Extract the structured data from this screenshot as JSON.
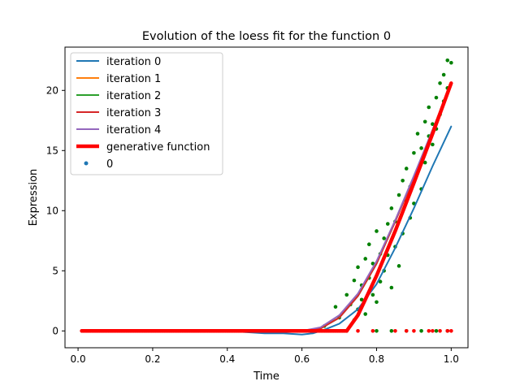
{
  "chart_data": {
    "type": "scatter",
    "title": "Evolution of the loess fit for the function 0",
    "xlabel": "Time",
    "ylabel": "Expression",
    "xlim": [
      -0.035,
      1.045
    ],
    "ylim": [
      -1.4,
      23.6
    ],
    "xticks": [
      0.0,
      0.2,
      0.4,
      0.6,
      0.8,
      1.0
    ],
    "xtick_labels": [
      "0.0",
      "0.2",
      "0.4",
      "0.6",
      "0.8",
      "1.0"
    ],
    "yticks": [
      0,
      5,
      10,
      15,
      20
    ],
    "ytick_labels": [
      "0",
      "5",
      "10",
      "15",
      "20"
    ],
    "grid": false,
    "legend_position": "upper-left",
    "series": [
      {
        "name": "iteration 0",
        "kind": "line",
        "color": "#1f77b4",
        "x": [
          0.01,
          0.1,
          0.2,
          0.3,
          0.4,
          0.45,
          0.5,
          0.55,
          0.6,
          0.63,
          0.66,
          0.7,
          0.75,
          0.8,
          0.85,
          0.9,
          0.95,
          1.0
        ],
        "y": [
          0.0,
          0.0,
          0.0,
          0.0,
          0.0,
          -0.1,
          -0.2,
          -0.2,
          -0.3,
          -0.2,
          0.1,
          0.6,
          1.8,
          3.9,
          6.9,
          10.2,
          13.7,
          17.0
        ]
      },
      {
        "name": "iteration 1",
        "kind": "line",
        "color": "#ff7f0e",
        "x": [
          0.01,
          0.2,
          0.4,
          0.6,
          0.65,
          0.7,
          0.75,
          0.8,
          0.85,
          0.9,
          0.95,
          1.0
        ],
        "y": [
          0.0,
          0.0,
          0.0,
          0.0,
          0.2,
          1.1,
          2.9,
          5.6,
          9.1,
          12.8,
          16.7,
          20.6
        ]
      },
      {
        "name": "iteration 2",
        "kind": "line",
        "color": "#2ca02c",
        "x": [
          0.01,
          0.2,
          0.4,
          0.6,
          0.65,
          0.7,
          0.75,
          0.8,
          0.85,
          0.9,
          0.95,
          1.0
        ],
        "y": [
          0.0,
          0.0,
          0.0,
          0.0,
          0.2,
          1.1,
          2.9,
          5.6,
          9.1,
          12.8,
          16.7,
          20.6
        ]
      },
      {
        "name": "iteration 3",
        "kind": "line",
        "color": "#d62728",
        "x": [
          0.01,
          0.2,
          0.4,
          0.6,
          0.65,
          0.7,
          0.75,
          0.8,
          0.85,
          0.9,
          0.95,
          1.0
        ],
        "y": [
          0.0,
          0.0,
          0.0,
          0.0,
          0.2,
          1.1,
          2.9,
          5.6,
          9.1,
          12.8,
          16.7,
          20.6
        ]
      },
      {
        "name": "iteration 4",
        "kind": "line",
        "color": "#9467bd",
        "x": [
          0.01,
          0.2,
          0.4,
          0.6,
          0.65,
          0.7,
          0.75,
          0.8,
          0.85,
          0.9,
          0.95,
          1.0
        ],
        "y": [
          0.0,
          0.0,
          0.0,
          0.0,
          0.3,
          1.3,
          3.1,
          5.8,
          9.2,
          12.9,
          16.7,
          20.6
        ]
      },
      {
        "name": "generative function",
        "kind": "thick-line",
        "color": "#ff0000",
        "x": [
          0.01,
          0.2,
          0.4,
          0.6,
          0.7,
          0.72,
          0.75,
          0.8,
          0.85,
          0.9,
          0.95,
          1.0
        ],
        "y": [
          0.0,
          0.0,
          0.0,
          0.0,
          0.0,
          0.0,
          1.3,
          4.6,
          8.3,
          12.3,
          16.4,
          20.6
        ]
      },
      {
        "name": "0",
        "kind": "points",
        "color": "#1f77b4"
      }
    ],
    "scatter_points": {
      "color": "#008000",
      "x": [
        0.66,
        0.69,
        0.7,
        0.72,
        0.73,
        0.74,
        0.74,
        0.75,
        0.75,
        0.76,
        0.76,
        0.77,
        0.77,
        0.78,
        0.78,
        0.79,
        0.79,
        0.8,
        0.8,
        0.81,
        0.81,
        0.82,
        0.82,
        0.83,
        0.83,
        0.84,
        0.84,
        0.85,
        0.85,
        0.86,
        0.86,
        0.87,
        0.87,
        0.88,
        0.88,
        0.89,
        0.89,
        0.9,
        0.9,
        0.91,
        0.91,
        0.92,
        0.92,
        0.93,
        0.93,
        0.94,
        0.94,
        0.95,
        0.95,
        0.96,
        0.96,
        0.97,
        0.97,
        0.98,
        0.98,
        0.99,
        0.99,
        1.0,
        0.72,
        0.8,
        0.84,
        0.88,
        0.92,
        0.96,
        0.99
      ],
      "y": [
        0.4,
        2.0,
        1.1,
        3.0,
        2.2,
        4.2,
        0.9,
        5.3,
        1.8,
        3.8,
        2.6,
        6.0,
        1.4,
        4.4,
        7.2,
        3.0,
        5.6,
        8.3,
        2.4,
        6.4,
        4.1,
        7.7,
        5.0,
        8.9,
        6.3,
        10.2,
        3.6,
        9.1,
        7.0,
        11.3,
        5.4,
        12.5,
        8.1,
        10.8,
        13.5,
        9.4,
        12.0,
        14.8,
        10.6,
        13.2,
        16.4,
        11.8,
        15.2,
        17.4,
        14.0,
        16.2,
        18.6,
        15.5,
        17.2,
        19.4,
        16.8,
        20.6,
        18.0,
        21.3,
        19.1,
        22.5,
        20.2,
        22.3,
        0.0,
        0.0,
        0.0,
        0.0,
        0.0,
        0.0,
        0.0
      ]
    },
    "red_points": {
      "color": "#ff0000",
      "x_start": 0.01,
      "x_end": 0.72,
      "count": 180,
      "extra_x": [
        0.75,
        0.79,
        0.85,
        0.88,
        0.9,
        0.94,
        0.95,
        0.97,
        0.99,
        1.0
      ],
      "y": 0.0
    }
  }
}
